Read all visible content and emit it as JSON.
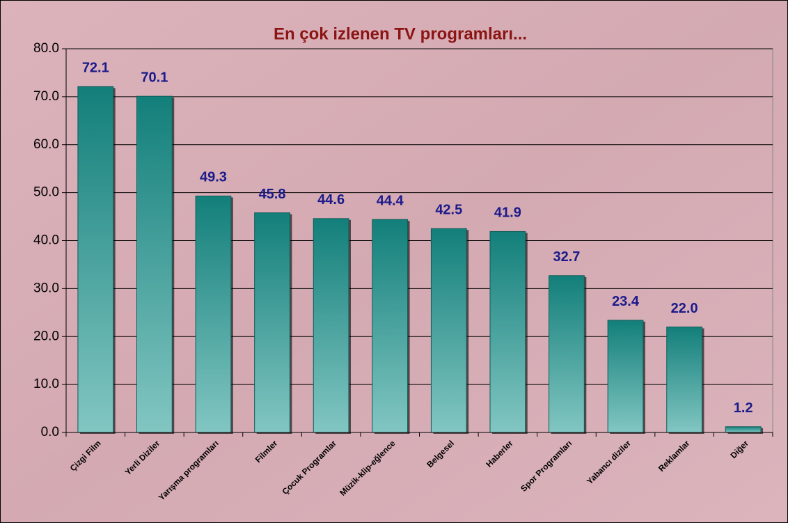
{
  "chart_data": {
    "type": "bar",
    "title": "En çok izlenen TV programları...",
    "categories": [
      "Çizgi Film",
      "Yerli Diziler",
      "Yarışma programları",
      "Filmler",
      "Çocuk Programlar",
      "Müzik-klip-eğlence",
      "Belgesel",
      "Haberler",
      "Spor Programları",
      "Yabancı diziler",
      "Reklamlar",
      "Diğer"
    ],
    "values": [
      72.1,
      70.1,
      49.3,
      45.8,
      44.6,
      44.4,
      42.5,
      41.9,
      32.7,
      23.4,
      22,
      1.2
    ],
    "value_labels": [
      "72.1",
      "70.1",
      "49.3",
      "45.8",
      "44.6",
      "44.4",
      "42.5",
      "41.9",
      "32.7",
      "23.4",
      "22.0",
      "1.2"
    ],
    "color": "#137f7a",
    "ylim": [
      0,
      80
    ],
    "yticks": [
      {
        "value": 0,
        "label": "0.0"
      },
      {
        "value": 10,
        "label": "10.0"
      },
      {
        "value": 20,
        "label": "20.0"
      },
      {
        "value": 30,
        "label": "30.0"
      },
      {
        "value": 40,
        "label": "40.0"
      },
      {
        "value": 50,
        "label": "50.0"
      },
      {
        "value": 60,
        "label": "60.0"
      },
      {
        "value": 70,
        "label": "70.0"
      },
      {
        "value": 80,
        "label": "80.0"
      }
    ],
    "grid": true
  }
}
